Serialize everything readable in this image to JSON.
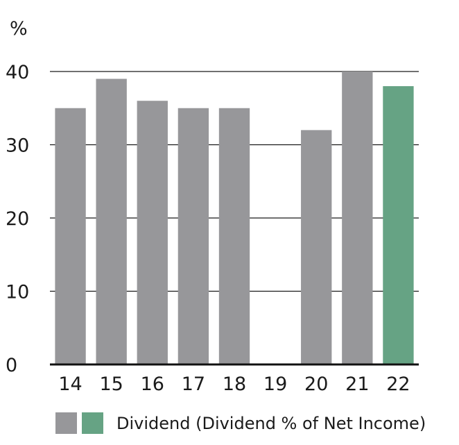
{
  "chart_data": {
    "type": "bar",
    "unit": "%",
    "categories": [
      "14",
      "15",
      "16",
      "17",
      "18",
      "19",
      "20",
      "21",
      "22"
    ],
    "series": [
      {
        "name": "Dividend (Dividend % of Net Income)",
        "values": [
          35,
          39,
          36,
          35,
          35,
          0,
          32,
          40,
          38
        ]
      }
    ],
    "highlight_category": "22",
    "ylim": [
      0,
      40
    ],
    "yticks": [
      0,
      10,
      20,
      30,
      40
    ],
    "grid": true,
    "legend": "bottom",
    "colors": {
      "bar": "#97979a",
      "highlight": "#66a384",
      "grid": "#1a1a1a",
      "axis": "#111111"
    }
  },
  "legend": {
    "label": "Dividend (Dividend % of Net Income)",
    "swatch_colors": [
      "#97979a",
      "#66a384"
    ]
  }
}
